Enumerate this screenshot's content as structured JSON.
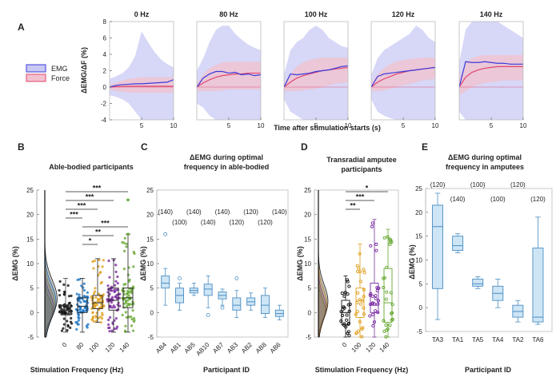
{
  "figure": {
    "panel_letters": [
      "A",
      "B",
      "C",
      "D",
      "E"
    ]
  },
  "chart_data": [
    {
      "type": "line",
      "panel": "A",
      "ylabel": "ΔEMG/ΔF (%)",
      "xlabel": "Time after stimulation starts (s)",
      "ylim": [
        -4,
        8
      ],
      "yticks": [
        -4,
        -2,
        0,
        2,
        4,
        6,
        8
      ],
      "xlim": [
        0,
        10
      ],
      "xticks": [
        5,
        10
      ],
      "legend": [
        "EMG",
        "Force"
      ],
      "colors": {
        "emg": "#3b3bdb",
        "force": "#e0466e",
        "emg_band": "#c9c9f4",
        "force_band": "#f2c1ce"
      },
      "subplots": [
        {
          "title": "0 Hz",
          "emg_x": [
            0,
            1,
            2,
            3,
            4,
            5,
            6,
            7,
            8,
            9,
            10
          ],
          "emg_y": [
            0,
            0.2,
            0.3,
            0.35,
            0.4,
            0.4,
            0.45,
            0.5,
            0.55,
            0.6,
            0.9
          ],
          "force_x": [
            0,
            1,
            2,
            3,
            4,
            5,
            6,
            7,
            8,
            9,
            10
          ],
          "force_y": [
            0,
            0.05,
            0.08,
            0.1,
            0.1,
            0.1,
            0.1,
            0.1,
            0.1,
            0.1,
            0.1
          ],
          "emg_band_hi": [
            1,
            1.3,
            1.7,
            2.4,
            3.8,
            6.8,
            5.5,
            4.3,
            3.4,
            2.8,
            2.4
          ],
          "emg_band_lo": [
            -1,
            -1.2,
            -1.5,
            -2,
            -3,
            -4,
            -4,
            -4,
            -4,
            -4,
            -4
          ],
          "force_band_hi": [
            0.3,
            0.5,
            0.8,
            1,
            1.1,
            1.2,
            1.2,
            1.2,
            1.2,
            1.2,
            1.2
          ],
          "force_band_lo": [
            -0.3,
            -0.5,
            -0.6,
            -0.7,
            -0.7,
            -0.7,
            -0.7,
            -0.7,
            -0.7,
            -0.7,
            -0.7
          ]
        },
        {
          "title": "80 Hz",
          "emg_x": [
            0,
            1,
            2,
            3,
            4,
            5,
            6,
            7,
            8,
            9,
            10
          ],
          "emg_y": [
            0,
            1.1,
            1.6,
            1.9,
            1.9,
            1.7,
            1.8,
            1.5,
            1.6,
            1.4,
            1.5
          ],
          "force_x": [
            0,
            1,
            2,
            3,
            4,
            5,
            6,
            7,
            8,
            9,
            10
          ],
          "force_y": [
            0,
            0.5,
            0.9,
            1.2,
            1.4,
            1.5,
            1.6,
            1.6,
            1.7,
            1.7,
            1.7
          ],
          "emg_band_hi": [
            2,
            3.5,
            5.5,
            7,
            7.5,
            7.5,
            6.5,
            5.8,
            5.2,
            4.8,
            4.5
          ],
          "emg_band_lo": [
            -2,
            -2.5,
            -3.5,
            -4,
            -4,
            -4,
            -4,
            -4,
            -4,
            -4,
            -4
          ],
          "force_band_hi": [
            0.5,
            1.5,
            2.3,
            2.7,
            3,
            3.1,
            3.1,
            3.1,
            3.1,
            3.1,
            3.1
          ],
          "force_band_lo": [
            -0.5,
            -0.5,
            -0.5,
            -0.5,
            -0.4,
            -0.3,
            -0.3,
            -0.3,
            -0.3,
            -0.3,
            -0.3
          ]
        },
        {
          "title": "100 Hz",
          "emg_x": [
            0,
            1,
            2,
            3,
            4,
            5,
            6,
            7,
            8,
            9,
            10
          ],
          "emg_y": [
            0,
            1.6,
            1.5,
            1.6,
            1.7,
            1.9,
            2,
            2.1,
            2.3,
            2.5,
            2.6
          ],
          "force_x": [
            0,
            1,
            2,
            3,
            4,
            5,
            6,
            7,
            8,
            9,
            10
          ],
          "force_y": [
            0,
            0.6,
            1.1,
            1.4,
            1.6,
            1.8,
            2,
            2.1,
            2.2,
            2.3,
            2.4
          ],
          "emg_band_hi": [
            1.5,
            4.5,
            5.5,
            6,
            7,
            7.5,
            7,
            6,
            5.5,
            5,
            4.8
          ],
          "emg_band_lo": [
            -1.5,
            -3,
            -3.5,
            -4,
            -4,
            -4,
            -4,
            -4,
            -4,
            -4,
            -4
          ],
          "force_band_hi": [
            0.5,
            1.6,
            2.5,
            3,
            3.3,
            3.5,
            3.6,
            3.6,
            3.6,
            3.6,
            3.6
          ],
          "force_band_lo": [
            -0.5,
            -0.5,
            -0.5,
            -0.4,
            -0.3,
            -0.2,
            0,
            0.2,
            0.4,
            0.5,
            0.6
          ]
        },
        {
          "title": "120 Hz",
          "emg_x": [
            0,
            1,
            2,
            3,
            4,
            5,
            6,
            7,
            8,
            9,
            10
          ],
          "emg_y": [
            0,
            1.3,
            1.6,
            1.7,
            1.8,
            1.9,
            2,
            2.1,
            2.2,
            2.3,
            2.4
          ],
          "force_x": [
            0,
            1,
            2,
            3,
            4,
            5,
            6,
            7,
            8,
            9,
            10
          ],
          "force_y": [
            0,
            0.6,
            1,
            1.3,
            1.6,
            1.8,
            2,
            2.1,
            2.2,
            2.3,
            2.4
          ],
          "emg_band_hi": [
            1.5,
            3.5,
            4.5,
            5,
            5.5,
            6,
            6.5,
            7.5,
            7,
            6,
            5.5
          ],
          "emg_band_lo": [
            -1.5,
            -3,
            -3.5,
            -3.8,
            -4,
            -4,
            -4,
            -4,
            -4,
            -4,
            -4
          ],
          "force_band_hi": [
            0.5,
            1.6,
            2.3,
            2.8,
            3.1,
            3.3,
            3.4,
            3.5,
            3.6,
            3.6,
            3.6
          ],
          "force_band_lo": [
            -0.5,
            -0.5,
            -0.4,
            -0.2,
            0,
            0.2,
            0.4,
            0.6,
            0.8,
            0.9,
            1
          ]
        },
        {
          "title": "140 Hz",
          "emg_x": [
            0,
            1,
            2,
            3,
            4,
            5,
            6,
            7,
            8,
            9,
            10
          ],
          "emg_y": [
            0,
            3.1,
            3,
            3,
            3.1,
            3,
            2.9,
            2.9,
            2.8,
            2.8,
            2.8
          ],
          "force_x": [
            0,
            1,
            2,
            3,
            4,
            5,
            6,
            7,
            8,
            9,
            10
          ],
          "force_y": [
            0,
            1.2,
            1.8,
            2.1,
            2.3,
            2.4,
            2.5,
            2.5,
            2.5,
            2.5,
            2.5
          ],
          "emg_band_hi": [
            3,
            7,
            8,
            8,
            8,
            8,
            8,
            7.5,
            7,
            6.5,
            6
          ],
          "emg_band_lo": [
            -3,
            -4,
            -4,
            -4,
            -4,
            -4,
            -4,
            -4,
            -4,
            -4,
            -4
          ],
          "force_band_hi": [
            1,
            3,
            3.5,
            3.8,
            3.9,
            3.9,
            3.9,
            3.9,
            3.9,
            3.9,
            3.9
          ],
          "force_band_lo": [
            -1,
            -0.5,
            0,
            0.3,
            0.5,
            0.6,
            0.7,
            0.8,
            0.8,
            0.8,
            0.8
          ]
        }
      ]
    },
    {
      "type": "box",
      "panel": "B",
      "title": "Able-bodied participants",
      "ylabel": "ΔEMG (%)",
      "xlabel": "Stimulation Frequency (Hz)",
      "ylim": [
        -5,
        25
      ],
      "yticks": [
        -5,
        0,
        5,
        10,
        15,
        20,
        25
      ],
      "categories": [
        "0",
        "80",
        "100",
        "120",
        "140"
      ],
      "colors": [
        "#111111",
        "#1f77c4",
        "#e0a020",
        "#7a2ca0",
        "#66a832"
      ],
      "boxes": [
        {
          "q1": -0.5,
          "median": 0.5,
          "q3": 1.5,
          "lo": -4,
          "hi": 7
        },
        {
          "q1": 0,
          "median": 1.3,
          "q3": 3,
          "lo": -4,
          "hi": 7
        },
        {
          "q1": 0.8,
          "median": 2,
          "q3": 3.5,
          "lo": -2,
          "hi": 11
        },
        {
          "q1": 0.5,
          "median": 2.5,
          "q3": 5,
          "lo": -4,
          "hi": 11
        },
        {
          "q1": 1,
          "median": 3,
          "q3": 5,
          "lo": -4,
          "hi": 16
        }
      ],
      "outliers": [
        [],
        [],
        [],
        [],
        [
          16,
          23
        ]
      ],
      "significance": [
        {
          "from": 0,
          "to": 4,
          "label": "***"
        },
        {
          "from": 0,
          "to": 3,
          "label": "***"
        },
        {
          "from": 0,
          "to": 2,
          "label": "***"
        },
        {
          "from": 0,
          "to": 1,
          "label": "***"
        },
        {
          "from": 1,
          "to": 4,
          "label": "***"
        },
        {
          "from": 1,
          "to": 3,
          "label": "**"
        },
        {
          "from": 1,
          "to": 2,
          "label": "*"
        }
      ]
    },
    {
      "type": "box",
      "panel": "C",
      "title_lines": [
        "ΔEMG during optimal",
        "frequency in able-bodied"
      ],
      "ylabel": "ΔEMG (%)",
      "xlabel": "Participant ID",
      "ylim": [
        -5,
        25
      ],
      "yticks": [
        -5,
        0,
        5,
        10,
        15,
        20,
        25
      ],
      "categories": [
        "AB4",
        "AB1",
        "AB5",
        "AB10",
        "AB7",
        "AB3",
        "AB2",
        "AB8",
        "AB6"
      ],
      "freq_labels": [
        "(140)",
        "(100)",
        "(140)",
        "(140)",
        "(140)",
        "(120)",
        "(120)",
        "(120)",
        "(140)"
      ],
      "freq_row": [
        0,
        1,
        0,
        1,
        0,
        1,
        0,
        1,
        0
      ],
      "boxes": [
        {
          "q1": 5,
          "median": 6,
          "q3": 7.5,
          "lo": 1.5,
          "hi": 9
        },
        {
          "q1": 2,
          "median": 3.5,
          "q3": 5,
          "lo": 0.5,
          "hi": 6
        },
        {
          "q1": 4,
          "median": 4.5,
          "q3": 5,
          "lo": 3.5,
          "hi": 6
        },
        {
          "q1": 3.5,
          "median": 4.8,
          "q3": 5.8,
          "lo": 1,
          "hi": 7.5
        },
        {
          "q1": 2.8,
          "median": 3.5,
          "q3": 4.2,
          "lo": 1.5,
          "hi": 4.8
        },
        {
          "q1": 0.5,
          "median": 1.5,
          "q3": 3,
          "lo": -1,
          "hi": 4.5
        },
        {
          "q1": 1.5,
          "median": 2.2,
          "q3": 3,
          "lo": 0.5,
          "hi": 4
        },
        {
          "q1": -0.2,
          "median": 1.5,
          "q3": 3.5,
          "lo": -1,
          "hi": 5
        },
        {
          "q1": -0.8,
          "median": -0.2,
          "q3": 0.5,
          "lo": -1.5,
          "hi": 1.5
        }
      ],
      "outliers": [
        [
          16
        ],
        [
          7
        ],
        [],
        [
          -0.5
        ],
        [
          1
        ],
        [
          7
        ],
        [],
        [],
        []
      ]
    },
    {
      "type": "box",
      "panel": "D",
      "title_lines": [
        "Transradial amputee",
        "participants"
      ],
      "ylabel": "ΔEMG (%)",
      "xlabel": "Stimulation Frequency (Hz)",
      "ylim": [
        -5,
        25
      ],
      "yticks": [
        -5,
        0,
        5,
        10,
        15,
        20,
        25
      ],
      "categories": [
        "0",
        "100",
        "120",
        "140"
      ],
      "colors": [
        "#111111",
        "#e0a020",
        "#7a2ca0",
        "#66a832"
      ],
      "boxes": [
        {
          "q1": -2.5,
          "median": 0,
          "q3": 2.5,
          "lo": -5,
          "hi": 7.5
        },
        {
          "q1": -1,
          "median": 2.5,
          "q3": 5,
          "lo": -5,
          "hi": 14
        },
        {
          "q1": 0,
          "median": 1.5,
          "q3": 6,
          "lo": -5,
          "hi": 19
        },
        {
          "q1": -2,
          "median": 2,
          "q3": 9,
          "lo": -5,
          "hi": 17
        }
      ],
      "outliers": [
        [],
        [],
        [],
        []
      ],
      "significance": [
        {
          "from": 0,
          "to": 3,
          "label": "*"
        },
        {
          "from": 0,
          "to": 2,
          "label": "***"
        },
        {
          "from": 0,
          "to": 1,
          "label": "**"
        }
      ]
    },
    {
      "type": "box",
      "panel": "E",
      "title_lines": [
        "ΔEMG during optimal",
        "frequency in amputees"
      ],
      "ylabel": "ΔEMG (%)",
      "xlabel": "Participant ID",
      "ylim": [
        -5,
        25
      ],
      "yticks": [
        -5,
        0,
        5,
        10,
        15,
        20,
        25
      ],
      "categories": [
        "TA3",
        "TA1",
        "TA5",
        "TA4",
        "TA2",
        "TA6"
      ],
      "freq_labels": [
        "(120)",
        "(140)",
        "(100)",
        "(100)",
        "(120)",
        "(120)"
      ],
      "freq_row": [
        0,
        1,
        0,
        1,
        0,
        1
      ],
      "boxes": [
        {
          "q1": 4,
          "median": 17,
          "q3": 21.5,
          "lo": -2.5,
          "hi": 24
        },
        {
          "q1": 12,
          "median": 13,
          "q3": 15,
          "lo": 11.5,
          "hi": 15.5
        },
        {
          "q1": 4.5,
          "median": 5,
          "q3": 6,
          "lo": 4,
          "hi": 6.5
        },
        {
          "q1": 1.5,
          "median": 3,
          "q3": 4.5,
          "lo": 0,
          "hi": 6
        },
        {
          "q1": -2,
          "median": -0.8,
          "q3": 0.5,
          "lo": -3,
          "hi": 1.5
        },
        {
          "q1": -3,
          "median": -2,
          "q3": 12.5,
          "lo": -3.5,
          "hi": 19
        }
      ],
      "outliers": [
        [],
        [],
        [],
        [],
        [],
        []
      ]
    }
  ]
}
